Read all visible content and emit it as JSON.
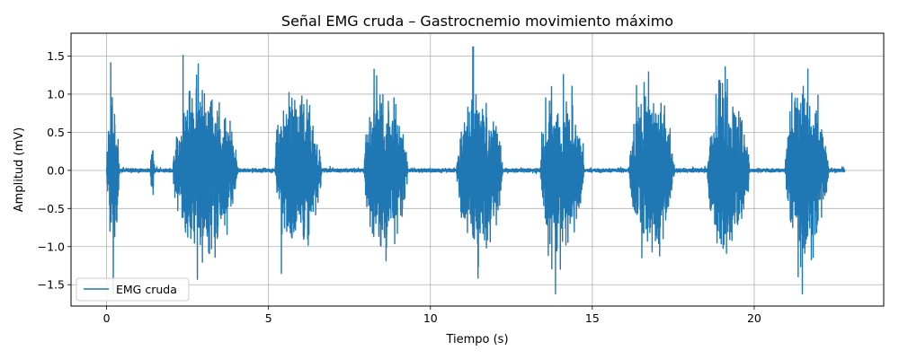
{
  "chart_data": {
    "type": "line",
    "title": "Señal EMG cruda – Gastrocnemio movimiento máximo",
    "xlabel": "Tiempo (s)",
    "ylabel": "Amplitud (mV)",
    "xlim": [
      -1.1,
      24.0
    ],
    "ylim": [
      -1.78,
      1.8
    ],
    "xticks": [
      0,
      5,
      10,
      15,
      20
    ],
    "xtick_labels": [
      "0",
      "5",
      "10",
      "15",
      "20"
    ],
    "yticks": [
      -1.5,
      -1.0,
      -0.5,
      0.0,
      0.5,
      1.0,
      1.5
    ],
    "ytick_labels": [
      "−1.5",
      "−1.0",
      "−0.5",
      "0.0",
      "0.5",
      "1.0",
      "1.5"
    ],
    "grid": true,
    "legend_position": "lower-left",
    "series": [
      {
        "name": "EMG cruda",
        "color": "#1f77b4",
        "duration_s": 22.8,
        "baseline_noise_mV": 0.02,
        "clip_mV": 1.62,
        "bursts": [
          {
            "start": 0.0,
            "end": 0.45,
            "amplitude": 1.25
          },
          {
            "start": 1.35,
            "end": 1.5,
            "amplitude": 0.55
          },
          {
            "start": 2.05,
            "end": 4.35,
            "amplitude": 1.62
          },
          {
            "start": 5.2,
            "end": 6.85,
            "amplitude": 1.62
          },
          {
            "start": 7.95,
            "end": 9.5,
            "amplitude": 1.62
          },
          {
            "start": 10.8,
            "end": 12.45,
            "amplitude": 1.62
          },
          {
            "start": 13.4,
            "end": 14.95,
            "amplitude": 1.62
          },
          {
            "start": 16.15,
            "end": 17.75,
            "amplitude": 1.62
          },
          {
            "start": 18.55,
            "end": 20.05,
            "amplitude": 1.62
          },
          {
            "start": 20.95,
            "end": 22.5,
            "amplitude": 1.62
          }
        ]
      }
    ]
  }
}
